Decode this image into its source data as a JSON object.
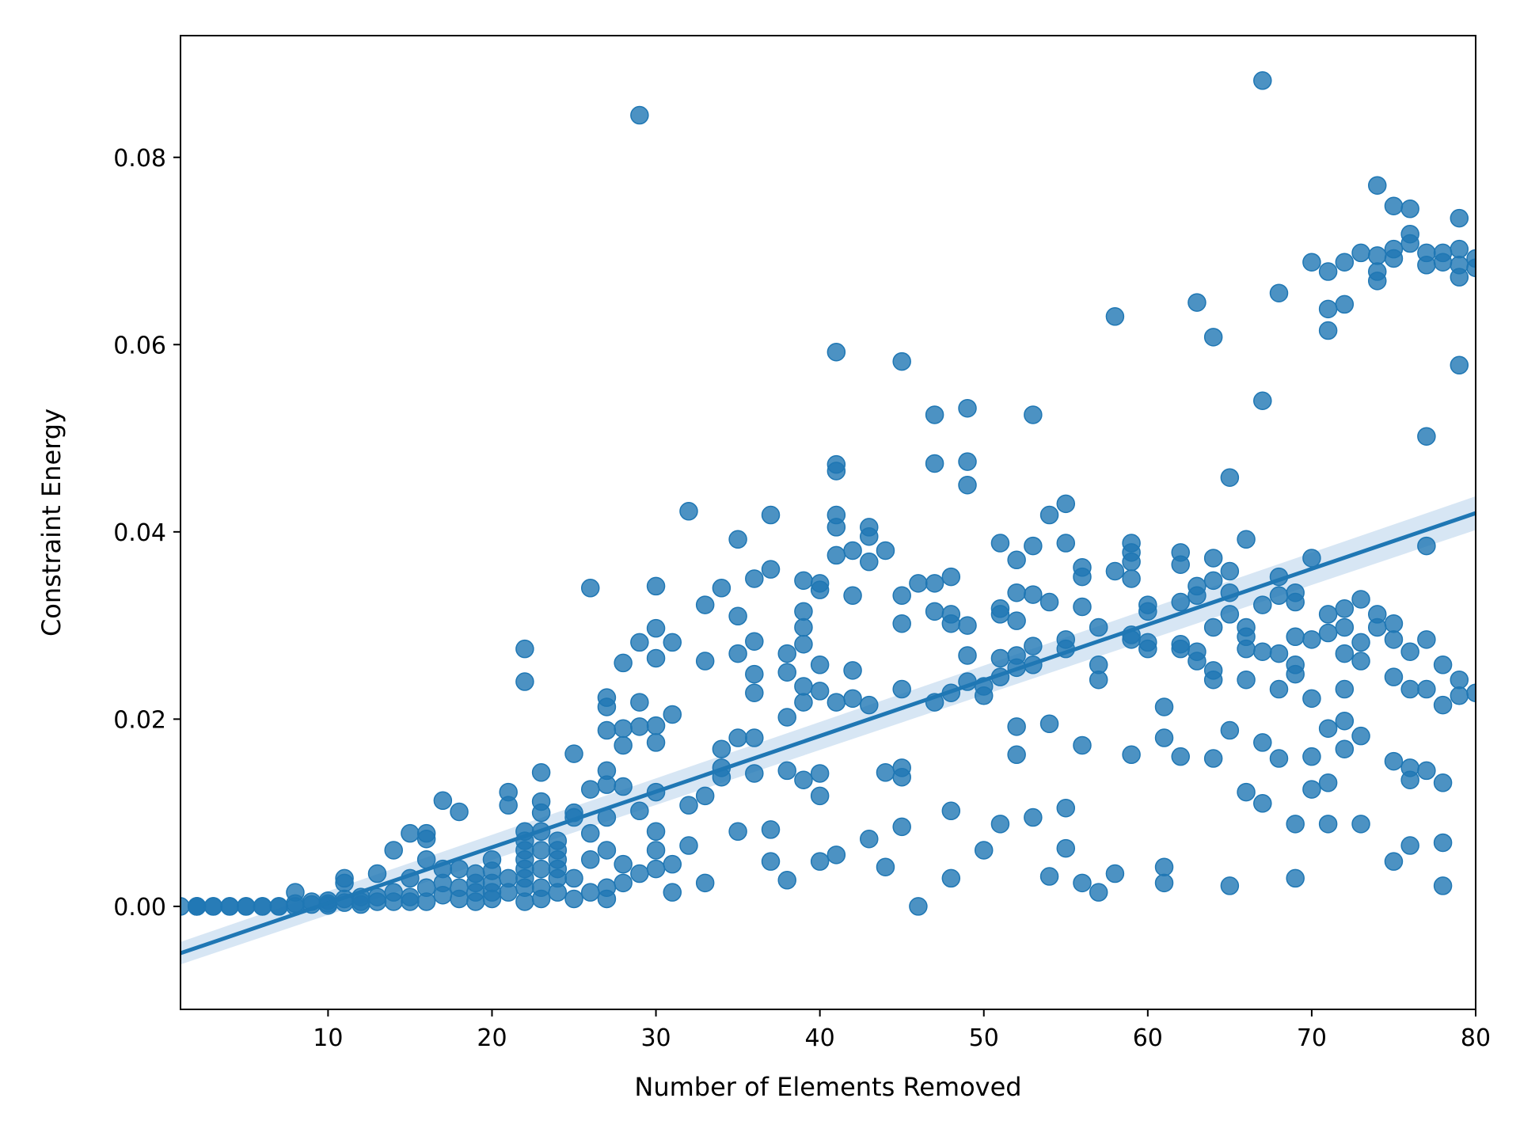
{
  "chart_data": {
    "type": "scatter",
    "title": "",
    "xlabel": "Number of Elements Removed",
    "ylabel": "Constraint Energy",
    "xlim": [
      1,
      80
    ],
    "ylim": [
      -0.011,
      0.093
    ],
    "x_ticks": [
      10,
      20,
      30,
      40,
      50,
      60,
      70,
      80
    ],
    "x_tick_labels": [
      "10",
      "20",
      "30",
      "40",
      "50",
      "60",
      "70",
      "80"
    ],
    "y_ticks": [
      0.0,
      0.02,
      0.04,
      0.06,
      0.08
    ],
    "y_tick_labels": [
      "0.00",
      "0.02",
      "0.04",
      "0.06",
      "0.08"
    ],
    "grid": false,
    "legend": "none",
    "colors": {
      "points": "#1f77b4",
      "line": "#1f77b4",
      "band": "#c6dbef"
    },
    "regression": {
      "x": [
        1,
        80
      ],
      "y": [
        -0.005,
        0.042
      ],
      "ci_halfwidth": [
        0.0012,
        0.0018
      ]
    },
    "series": [
      {
        "x": [
          1,
          2,
          2,
          2,
          3,
          3,
          4,
          4,
          5,
          5,
          6,
          6,
          7,
          7,
          8,
          8,
          8,
          9,
          9,
          10,
          10,
          10,
          11,
          11,
          11,
          11,
          12,
          12,
          12,
          13,
          13,
          13,
          14,
          14,
          14,
          15,
          15,
          15,
          15,
          16,
          16,
          16,
          16,
          16,
          17,
          17,
          17,
          17,
          18,
          18,
          18,
          18,
          19,
          19,
          19,
          19,
          20,
          20,
          20,
          20,
          20,
          21,
          21,
          21,
          21,
          22,
          22,
          22,
          22,
          22,
          22,
          22,
          22,
          22,
          22,
          23,
          23,
          23,
          23,
          23,
          23,
          23,
          23,
          24,
          24,
          24,
          24,
          24,
          24,
          25,
          25,
          25,
          25,
          25,
          26,
          26,
          26,
          26,
          26,
          27,
          27,
          27,
          27,
          27,
          27,
          27,
          27,
          27,
          28,
          28,
          28,
          28,
          28,
          28,
          29,
          29,
          29,
          29,
          29,
          29,
          30,
          30,
          30,
          30,
          30,
          30,
          30,
          30,
          30,
          31,
          31,
          31,
          31,
          32,
          32,
          32,
          33,
          33,
          33,
          33,
          34,
          34,
          34,
          34,
          35,
          35,
          35,
          35,
          35,
          36,
          36,
          36,
          36,
          36,
          36,
          37,
          37,
          37,
          37,
          38,
          38,
          38,
          38,
          38,
          39,
          39,
          39,
          39,
          39,
          39,
          39,
          40,
          40,
          40,
          40,
          40,
          40,
          40,
          41,
          41,
          41,
          41,
          41,
          41,
          41,
          41,
          42,
          42,
          42,
          42,
          43,
          43,
          43,
          43,
          43,
          44,
          44,
          44,
          45,
          45,
          45,
          45,
          45,
          45,
          45,
          46,
          46,
          47,
          47,
          47,
          47,
          47,
          48,
          48,
          48,
          48,
          48,
          48,
          49,
          49,
          49,
          49,
          49,
          49,
          50,
          50,
          50,
          51,
          51,
          51,
          51,
          51,
          51,
          52,
          52,
          52,
          52,
          52,
          52,
          52,
          53,
          53,
          53,
          53,
          53,
          53,
          54,
          54,
          54,
          54,
          55,
          55,
          55,
          55,
          55,
          55,
          56,
          56,
          56,
          56,
          56,
          57,
          57,
          57,
          57,
          58,
          58,
          58,
          59,
          59,
          59,
          59,
          59,
          59,
          59,
          60,
          60,
          60,
          60,
          61,
          61,
          61,
          61,
          62,
          62,
          62,
          62,
          62,
          62,
          63,
          63,
          63,
          63,
          63,
          64,
          64,
          64,
          64,
          64,
          64,
          64,
          65,
          65,
          65,
          65,
          65,
          65,
          66,
          66,
          66,
          66,
          66,
          66,
          67,
          67,
          67,
          67,
          67,
          67,
          68,
          68,
          68,
          68,
          68,
          68,
          69,
          69,
          69,
          69,
          69,
          69,
          69,
          70,
          70,
          70,
          70,
          70,
          70,
          71,
          71,
          71,
          71,
          71,
          71,
          71,
          71,
          72,
          72,
          72,
          72,
          72,
          72,
          72,
          72,
          73,
          73,
          73,
          73,
          73,
          73,
          74,
          74,
          74,
          74,
          74,
          74,
          75,
          75,
          75,
          75,
          75,
          75,
          75,
          75,
          76,
          76,
          76,
          76,
          76,
          76,
          76,
          76,
          77,
          77,
          77,
          77,
          77,
          77,
          77,
          78,
          78,
          78,
          78,
          78,
          78,
          78,
          79,
          79,
          79,
          79,
          79,
          79,
          79,
          80,
          80,
          80
        ],
        "y": [
          0.0,
          0.0,
          0.0,
          0.0,
          0.0,
          0.0,
          0.0,
          0.0,
          0.0,
          0.0,
          0.0,
          0.0,
          0.0,
          0.0,
          0.0015,
          0.0003,
          0.0,
          0.0005,
          0.0002,
          0.0003,
          0.0006,
          0.0001,
          0.003,
          0.0025,
          0.0008,
          0.0004,
          0.001,
          0.0005,
          0.0002,
          0.0035,
          0.001,
          0.0005,
          0.006,
          0.0015,
          0.0005,
          0.0078,
          0.003,
          0.001,
          0.0005,
          0.0078,
          0.0072,
          0.005,
          0.002,
          0.0005,
          0.0113,
          0.004,
          0.0025,
          0.0012,
          0.0101,
          0.004,
          0.002,
          0.0008,
          0.0035,
          0.0025,
          0.0015,
          0.0005,
          0.005,
          0.0038,
          0.0025,
          0.0015,
          0.0008,
          0.0122,
          0.0108,
          0.003,
          0.0015,
          0.0275,
          0.024,
          0.008,
          0.007,
          0.006,
          0.005,
          0.004,
          0.003,
          0.002,
          0.0005,
          0.0143,
          0.0112,
          0.01,
          0.008,
          0.006,
          0.004,
          0.002,
          0.0008,
          0.007,
          0.006,
          0.005,
          0.004,
          0.003,
          0.0015,
          0.0163,
          0.01,
          0.0095,
          0.003,
          0.0008,
          0.034,
          0.0125,
          0.0078,
          0.005,
          0.0015,
          0.0223,
          0.0213,
          0.0188,
          0.0145,
          0.013,
          0.0095,
          0.006,
          0.002,
          0.0008,
          0.026,
          0.019,
          0.0172,
          0.0128,
          0.0045,
          0.0025,
          0.0845,
          0.0282,
          0.0218,
          0.0192,
          0.0102,
          0.0035,
          0.0342,
          0.0297,
          0.0265,
          0.0193,
          0.0175,
          0.0122,
          0.008,
          0.006,
          0.004,
          0.0282,
          0.0205,
          0.0045,
          0.0015,
          0.0422,
          0.0108,
          0.0065,
          0.0322,
          0.0262,
          0.0118,
          0.0025,
          0.034,
          0.0168,
          0.0148,
          0.0138,
          0.0392,
          0.031,
          0.027,
          0.018,
          0.008,
          0.035,
          0.0283,
          0.0248,
          0.0228,
          0.018,
          0.0142,
          0.0418,
          0.036,
          0.0082,
          0.0048,
          0.027,
          0.025,
          0.0202,
          0.0145,
          0.0028,
          0.0348,
          0.0315,
          0.0298,
          0.028,
          0.0235,
          0.0218,
          0.0135,
          0.0345,
          0.0338,
          0.0258,
          0.023,
          0.0142,
          0.0118,
          0.0048,
          0.0592,
          0.0472,
          0.0465,
          0.0418,
          0.0405,
          0.0375,
          0.0218,
          0.0055,
          0.038,
          0.0332,
          0.0252,
          0.0222,
          0.0405,
          0.0395,
          0.0368,
          0.0215,
          0.0072,
          0.038,
          0.0143,
          0.0042,
          0.0582,
          0.0332,
          0.0302,
          0.0232,
          0.0148,
          0.0138,
          0.0085,
          0.0345,
          0.0,
          0.0525,
          0.0473,
          0.0345,
          0.0315,
          0.0218,
          0.0352,
          0.0312,
          0.0302,
          0.0228,
          0.0102,
          0.003,
          0.0532,
          0.0475,
          0.045,
          0.03,
          0.0268,
          0.024,
          0.0235,
          0.0225,
          0.006,
          0.0388,
          0.0318,
          0.0312,
          0.0265,
          0.0245,
          0.0088,
          0.037,
          0.0335,
          0.0305,
          0.0268,
          0.0255,
          0.0192,
          0.0162,
          0.0525,
          0.0385,
          0.0333,
          0.0278,
          0.0258,
          0.0095,
          0.0418,
          0.0325,
          0.0195,
          0.0032,
          0.043,
          0.0388,
          0.0285,
          0.0275,
          0.0105,
          0.0062,
          0.0362,
          0.0352,
          0.032,
          0.0172,
          0.0025,
          0.0298,
          0.0258,
          0.0242,
          0.0015,
          0.063,
          0.0358,
          0.0035,
          0.0388,
          0.0378,
          0.0368,
          0.035,
          0.029,
          0.0285,
          0.0162,
          0.0322,
          0.0315,
          0.0282,
          0.0275,
          0.0213,
          0.018,
          0.0042,
          0.0025,
          0.0378,
          0.0365,
          0.0325,
          0.028,
          0.0275,
          0.016,
          0.0645,
          0.0342,
          0.0332,
          0.0272,
          0.0262,
          0.0608,
          0.0372,
          0.0348,
          0.0298,
          0.0252,
          0.0242,
          0.0158,
          0.0458,
          0.0358,
          0.0335,
          0.0312,
          0.0188,
          0.0022,
          0.0392,
          0.0298,
          0.0288,
          0.0275,
          0.0242,
          0.0122,
          0.0882,
          0.054,
          0.0322,
          0.0272,
          0.0175,
          0.011,
          0.0655,
          0.0352,
          0.0332,
          0.027,
          0.0232,
          0.0158,
          0.0335,
          0.0325,
          0.0288,
          0.0258,
          0.0248,
          0.0088,
          0.003,
          0.0688,
          0.0372,
          0.0285,
          0.0222,
          0.016,
          0.0125,
          0.0678,
          0.0638,
          0.0615,
          0.0312,
          0.0292,
          0.019,
          0.0132,
          0.0088,
          0.0688,
          0.0643,
          0.0318,
          0.0298,
          0.027,
          0.0232,
          0.0198,
          0.0168,
          0.0698,
          0.0328,
          0.0282,
          0.0262,
          0.0182,
          0.0088,
          0.077,
          0.0695,
          0.0678,
          0.0668,
          0.0312,
          0.0298,
          0.0748,
          0.0702,
          0.0692,
          0.0302,
          0.0285,
          0.0245,
          0.0155,
          0.0048,
          0.0745,
          0.0718,
          0.0708,
          0.0272,
          0.0232,
          0.0148,
          0.0135,
          0.0065,
          0.0502,
          0.0698,
          0.0685,
          0.0385,
          0.0285,
          0.0232,
          0.0145,
          0.0698,
          0.0688,
          0.0258,
          0.0215,
          0.0132,
          0.0068,
          0.0022,
          0.0735,
          0.0702,
          0.0685,
          0.0672,
          0.0578,
          0.0242,
          0.0225,
          0.0692,
          0.0682,
          0.0228
        ]
      }
    ]
  }
}
